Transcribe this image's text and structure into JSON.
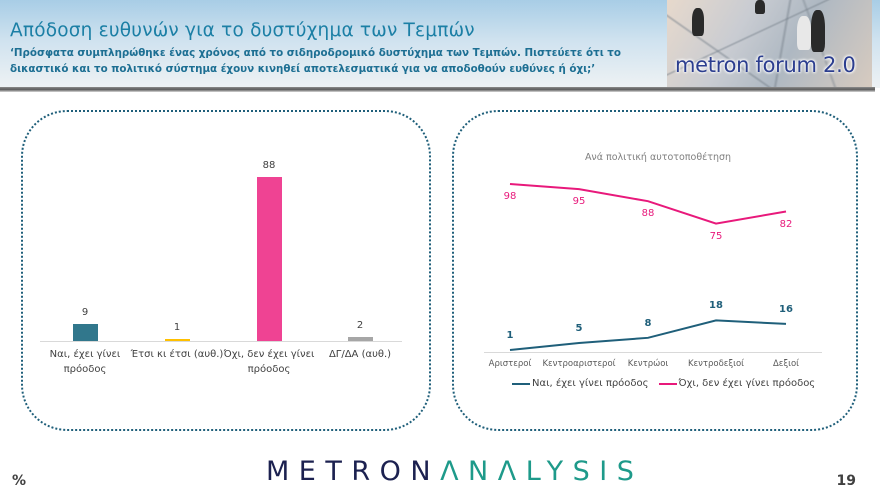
{
  "header": {
    "title": "Απόδοση ευθυνών για το δυστύχημα των Τεμπών",
    "question": "‘Πρόσφατα συμπληρώθηκε ένας χρόνος από το σιδηροδρομικό δυστύχημα των Τεμπών. Πιστεύετε ότι το δικαστικό και το πολιτικό σύστημα έχουν κινηθεί αποτελεσματικά για να αποδοθούν ευθύνες ή όχι;’",
    "forum_label": "metron forum 2.0"
  },
  "colors": {
    "yes": "#31778c",
    "so_so": "#ffc000",
    "no": "#ef4393",
    "dk": "#a6a6a6",
    "line_yes": "#1f5f7a",
    "line_no": "#e8197b",
    "panel_border": "#1f5f7a"
  },
  "chart_data": [
    {
      "type": "bar",
      "title": "",
      "categories": [
        "Ναι, έχει γίνει πρόοδος",
        "Έτσι κι έτσι (αυθ.)",
        "Όχι, δεν έχει γίνει πρόοδος",
        "ΔΓ/ΔΑ (αυθ.)"
      ],
      "category_lines": [
        [
          "Ναι, έχει γίνει",
          "πρόοδος"
        ],
        [
          "Έτσι κι έτσι (αυθ.)",
          ""
        ],
        [
          "Όχι, δεν έχει γίνει",
          "πρόοδος"
        ],
        [
          "ΔΓ/ΔΑ (αυθ.)",
          ""
        ]
      ],
      "values": [
        9,
        1,
        88,
        2
      ],
      "bar_colors": [
        "#31778c",
        "#ffc000",
        "#ef4393",
        "#a6a6a6"
      ],
      "xlabel": "",
      "ylabel": "%",
      "ylim": [
        0,
        100
      ],
      "grid": false,
      "data_labels": true
    },
    {
      "type": "line",
      "title": "Ανά πολιτική αυτοτοποθέτηση",
      "categories": [
        "Αριστεροί",
        "Κεντροαριστεροί",
        "Κεντρώοι",
        "Κεντροδεξιοί",
        "Δεξιοί"
      ],
      "series": [
        {
          "name": "Ναι, έχει γίνει πρόοδος",
          "values": [
            1,
            5,
            8,
            18,
            16
          ],
          "color": "#1f5f7a"
        },
        {
          "name": "Όχι, δεν έχει γίνει πρόοδος",
          "values": [
            98,
            95,
            88,
            75,
            82
          ],
          "color": "#e8197b"
        }
      ],
      "xlabel": "",
      "ylabel": "%",
      "ylim": [
        0,
        100
      ],
      "legend_position": "bottom",
      "grid": false,
      "data_labels": true
    }
  ],
  "footer": {
    "unit": "%",
    "brand_part1": "METRON",
    "brand_part2": "ΛNΛLYSIS",
    "page_number": "19"
  }
}
